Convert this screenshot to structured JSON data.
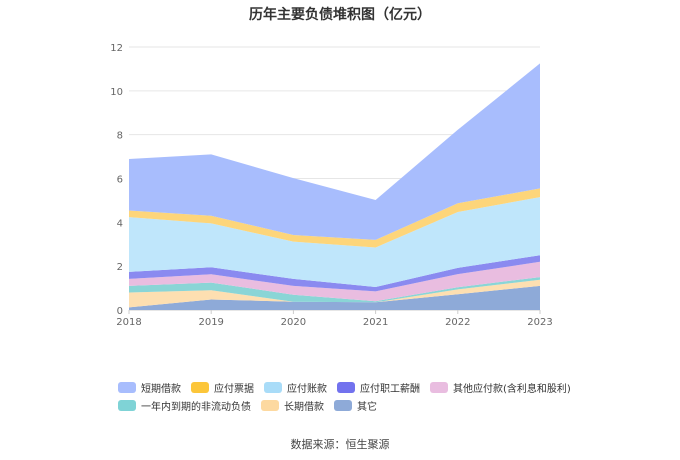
{
  "chart_data": {
    "type": "area",
    "stacked": true,
    "title": "历年主要负债堆积图（亿元）",
    "x": [
      "2018",
      "2019",
      "2020",
      "2021",
      "2022",
      "2023"
    ],
    "ylim": [
      0,
      12
    ],
    "yticks": [
      "0",
      "2",
      "4",
      "6",
      "8",
      "10",
      "12"
    ],
    "grid": true,
    "legend_position": "bottom",
    "series": [
      {
        "name": "其它",
        "color": "#8eaad8",
        "values": [
          0.12,
          0.48,
          0.38,
          0.35,
          0.72,
          1.1
        ]
      },
      {
        "name": "长期借款",
        "color": "#fddfb1",
        "values": [
          0.68,
          0.42,
          0.0,
          0.0,
          0.22,
          0.28
        ]
      },
      {
        "name": "一年内到期的非流动负债",
        "color": "#8ad5d6",
        "values": [
          0.3,
          0.35,
          0.32,
          0.05,
          0.1,
          0.12
        ]
      },
      {
        "name": "其他应付款(含利息和股利)",
        "color": "#e9bde0",
        "values": [
          0.32,
          0.38,
          0.4,
          0.45,
          0.6,
          0.7
        ]
      },
      {
        "name": "应付职工薪酬",
        "color": "#8a8af0",
        "values": [
          0.32,
          0.32,
          0.32,
          0.2,
          0.28,
          0.3
        ]
      },
      {
        "name": "应付账款",
        "color": "#bfe6fb",
        "values": [
          2.5,
          2.0,
          1.7,
          1.8,
          2.55,
          2.65
        ]
      },
      {
        "name": "应付票据",
        "color": "#fdd57a",
        "values": [
          0.3,
          0.35,
          0.3,
          0.35,
          0.4,
          0.4
        ]
      },
      {
        "name": "短期借款",
        "color": "#a8bdfd",
        "values": [
          2.35,
          2.8,
          2.6,
          1.82,
          3.35,
          5.7
        ]
      }
    ],
    "legend_order": [
      "短期借款",
      "应付票据",
      "应付账款",
      "应付职工薪酬",
      "其他应付款(含利息和股利)",
      "一年内到期的非流动负债",
      "长期借款",
      "其它"
    ]
  },
  "legend_row1": [
    {
      "label": "短期借款",
      "color": "#a8bdfd"
    },
    {
      "label": "应付票据",
      "color": "#fcc63a"
    },
    {
      "label": "应付账款",
      "color": "#a9dcf8"
    },
    {
      "label": "应付职工薪酬",
      "color": "#7272ee"
    },
    {
      "label": "其他应付款(含利息和股利)",
      "color": "#e9bde0"
    }
  ],
  "legend_row2": [
    {
      "label": "一年内到期的非流动负债",
      "color": "#7fd3d6"
    },
    {
      "label": "长期借款",
      "color": "#fdd9a0"
    },
    {
      "label": "其它",
      "color": "#8eaad8"
    }
  ],
  "source_text": "数据来源：恒生聚源"
}
